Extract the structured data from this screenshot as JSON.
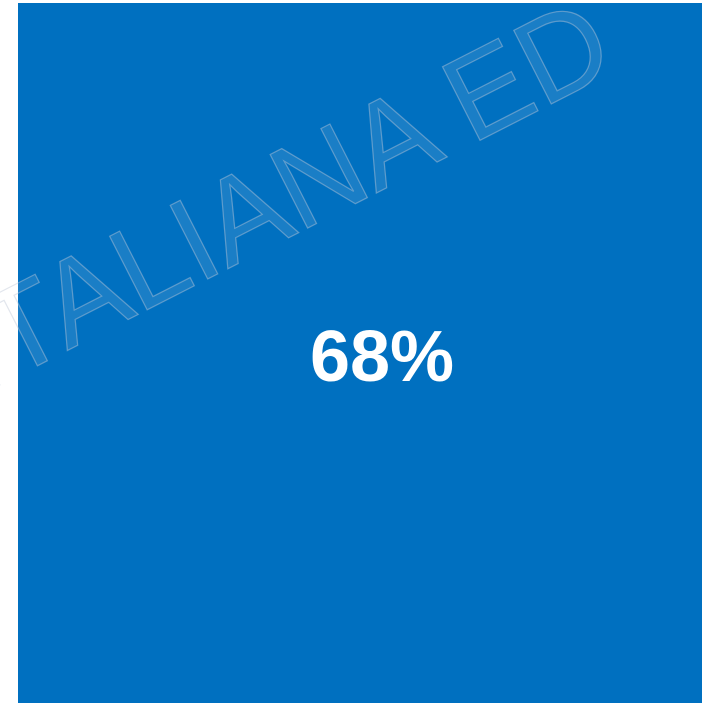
{
  "panel": {
    "value_label": "68%",
    "watermark": "ITALIANA ED"
  }
}
